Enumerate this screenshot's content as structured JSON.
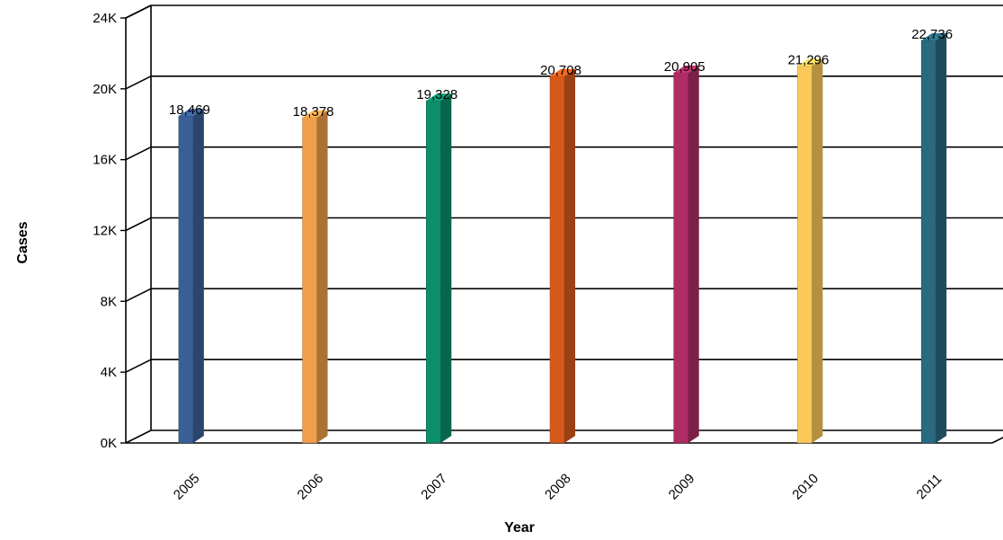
{
  "chart_data": {
    "type": "bar",
    "title": "",
    "xlabel": "Year",
    "ylabel": "Cases",
    "categories": [
      "2005",
      "2006",
      "2007",
      "2008",
      "2009",
      "2010",
      "2011"
    ],
    "values": [
      18469,
      18378,
      19328,
      20708,
      20905,
      21296,
      22736
    ],
    "value_labels": [
      "18,469",
      "18,378",
      "19,328",
      "20,708",
      "20,905",
      "21,296",
      "22,736"
    ],
    "ylim": [
      0,
      24000
    ],
    "y_ticks": [
      {
        "value": 0,
        "label": "0K"
      },
      {
        "value": 4000,
        "label": "4K"
      },
      {
        "value": 8000,
        "label": "8K"
      },
      {
        "value": 12000,
        "label": "12K"
      },
      {
        "value": 16000,
        "label": "16K"
      },
      {
        "value": 20000,
        "label": "20K"
      },
      {
        "value": 24000,
        "label": "24K"
      }
    ],
    "grid": true,
    "style": "3d",
    "colors": [
      "#3a5f96",
      "#ef9f4a",
      "#0b8e6a",
      "#d75a1c",
      "#ae2d64",
      "#fcc85a",
      "#2a6a80"
    ]
  }
}
